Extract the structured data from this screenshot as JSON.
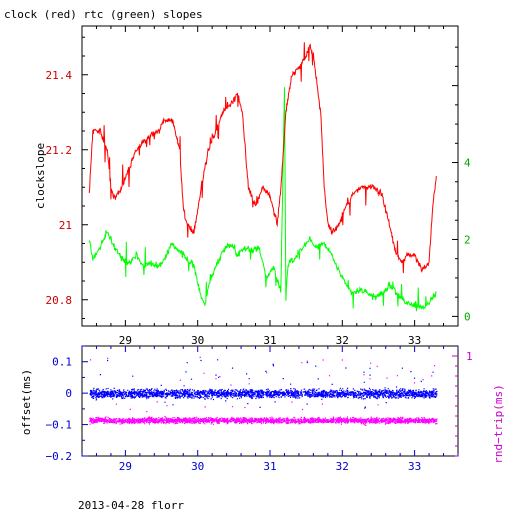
{
  "chart_data": [
    {
      "type": "line",
      "title": "clock (red) rtc (green) slopes",
      "xlabel": "",
      "ylabel": "clockslope",
      "xlim": [
        28.4,
        33.6
      ],
      "ylim": [
        20.73,
        21.53
      ],
      "x_ticks": [
        "29",
        "30",
        "31",
        "32",
        "33"
      ],
      "y_ticks": [
        "20.8",
        "21",
        "21.2",
        "21.4"
      ],
      "y2lim": [
        -0.25,
        7.55
      ],
      "y2_ticks": [
        "0",
        "2",
        "4"
      ],
      "grid": false,
      "series": [
        {
          "name": "clock",
          "color": "#ff0000",
          "axis": "left",
          "x": [
            28.5,
            28.55,
            28.65,
            28.75,
            28.8,
            28.85,
            28.95,
            29.05,
            29.15,
            29.25,
            29.35,
            29.45,
            29.55,
            29.65,
            29.75,
            29.8,
            29.85,
            29.95,
            30.05,
            30.15,
            30.25,
            30.35,
            30.45,
            30.55,
            30.62,
            30.7,
            30.8,
            30.9,
            31.0,
            31.1,
            31.15,
            31.22,
            31.3,
            31.4,
            31.5,
            31.55,
            31.6,
            31.7,
            31.75,
            31.8,
            31.85,
            31.95,
            32.05,
            32.15,
            32.25,
            32.35,
            32.45,
            32.55,
            32.65,
            32.75,
            32.82,
            32.9,
            33.0,
            33.1,
            33.2,
            33.25,
            33.3
          ],
          "values": [
            21.08,
            21.25,
            21.25,
            21.2,
            21.1,
            21.07,
            21.1,
            21.15,
            21.2,
            21.22,
            21.24,
            21.25,
            21.28,
            21.28,
            21.2,
            21.05,
            21.0,
            20.98,
            21.1,
            21.2,
            21.25,
            21.3,
            21.32,
            21.35,
            21.3,
            21.1,
            21.05,
            21.1,
            21.08,
            21.0,
            21.1,
            21.3,
            21.4,
            21.42,
            21.45,
            21.48,
            21.45,
            21.3,
            21.1,
            21.0,
            20.98,
            21.0,
            21.05,
            21.08,
            21.1,
            21.1,
            21.1,
            21.08,
            21.0,
            20.92,
            20.9,
            20.92,
            20.92,
            20.88,
            20.9,
            21.05,
            21.13
          ]
        },
        {
          "name": "rtc",
          "color": "#00ff00",
          "axis": "right",
          "x": [
            28.5,
            28.55,
            28.65,
            28.75,
            28.85,
            28.95,
            29.05,
            29.15,
            29.25,
            29.35,
            29.45,
            29.55,
            29.65,
            29.75,
            29.85,
            29.95,
            30.05,
            30.1,
            30.15,
            30.25,
            30.35,
            30.45,
            30.55,
            30.65,
            30.75,
            30.85,
            30.95,
            31.05,
            31.15,
            31.2,
            31.22,
            31.25,
            31.35,
            31.45,
            31.55,
            31.65,
            31.75,
            31.85,
            31.95,
            32.05,
            32.15,
            32.25,
            32.35,
            32.45,
            32.55,
            32.65,
            32.75,
            32.85,
            32.95,
            33.05,
            33.15,
            33.25,
            33.3
          ],
          "values": [
            2.0,
            1.5,
            1.8,
            2.2,
            1.8,
            1.5,
            1.4,
            1.6,
            1.3,
            1.4,
            1.3,
            1.5,
            1.9,
            1.7,
            1.5,
            1.3,
            0.5,
            0.3,
            0.8,
            1.3,
            1.7,
            1.9,
            1.6,
            1.8,
            1.7,
            1.8,
            1.0,
            1.3,
            0.6,
            6.0,
            0.5,
            1.4,
            1.5,
            1.8,
            2.0,
            1.8,
            1.9,
            1.6,
            1.2,
            0.8,
            0.6,
            0.7,
            0.6,
            0.5,
            0.6,
            0.8,
            0.6,
            0.4,
            0.3,
            0.3,
            0.2,
            0.5,
            0.6
          ]
        }
      ]
    },
    {
      "type": "scatter",
      "title": "",
      "xlabel": "",
      "ylabel": "offset(ms)",
      "y2label": "rnd−trip(ms)",
      "xlim": [
        28.4,
        33.6
      ],
      "ylim": [
        -0.2,
        0.15
      ],
      "x_ticks": [
        "29",
        "30",
        "31",
        "32",
        "33"
      ],
      "y_ticks": [
        "0.1",
        "0",
        "−0.1",
        "−0.2"
      ],
      "y2lim": [
        0.0,
        1.1
      ],
      "y2_ticks": [
        "1"
      ],
      "grid": false,
      "series": [
        {
          "name": "offset",
          "color": "#0000ff",
          "axis": "left",
          "x_range": [
            28.5,
            33.3
          ],
          "center": 0.0,
          "spread": 0.02,
          "outlier_range": [
            -0.05,
            0.11
          ]
        },
        {
          "name": "rnd-trip",
          "color": "#ff00ff",
          "axis": "right",
          "x_range": [
            28.5,
            33.3
          ],
          "center": 0.36,
          "spread": 0.04,
          "outlier_range": [
            0.3,
            1.0
          ]
        }
      ]
    }
  ],
  "footer": {
    "text": "2013-04-28 florr"
  }
}
